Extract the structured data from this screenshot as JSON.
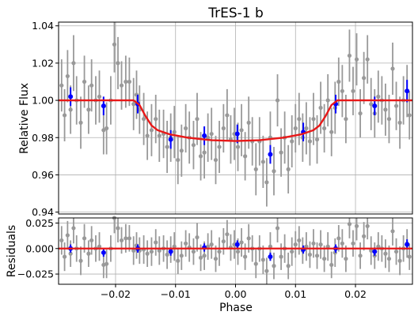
{
  "chart_data": [
    {
      "type": "scatter",
      "title": "TrES-1 b",
      "xlabel": "",
      "ylabel": "Relative Flux",
      "xlim": [
        -0.0295,
        0.0295
      ],
      "ylim": [
        0.939,
        1.042
      ],
      "yticks": [
        "0.94",
        "0.96",
        "0.98",
        "1.00",
        "1.02",
        "1.04"
      ],
      "ytick_values": [
        0.94,
        0.96,
        0.98,
        1.0,
        1.02,
        1.04
      ],
      "grid": true,
      "colors": {
        "raw": "#999999",
        "binned": "#0000ff",
        "model": "#e81818"
      },
      "raw": [
        [
          -0.029,
          1.008,
          0.014
        ],
        [
          -0.0285,
          0.992,
          0.014
        ],
        [
          -0.028,
          1.013,
          0.014
        ],
        [
          -0.0275,
          0.995,
          0.013
        ],
        [
          -0.027,
          1.02,
          0.015
        ],
        [
          -0.0265,
          1.0,
          0.013
        ],
        [
          -0.0258,
          0.988,
          0.014
        ],
        [
          -0.0252,
          1.01,
          0.014
        ],
        [
          -0.0245,
          0.995,
          0.013
        ],
        [
          -0.024,
          1.008,
          0.014
        ],
        [
          -0.0233,
          1.0,
          0.013
        ],
        [
          -0.0227,
          1.002,
          0.014
        ],
        [
          -0.022,
          0.984,
          0.013
        ],
        [
          -0.0215,
          0.985,
          0.014
        ],
        [
          -0.0208,
          1.0,
          0.013
        ],
        [
          -0.0202,
          1.03,
          0.015
        ],
        [
          -0.0196,
          1.02,
          0.014
        ],
        [
          -0.019,
          1.008,
          0.013
        ],
        [
          -0.0183,
          1.01,
          0.014
        ],
        [
          -0.0177,
          1.01,
          0.013
        ],
        [
          -0.017,
          0.998,
          0.014
        ],
        [
          -0.0165,
          1.003,
          0.013
        ],
        [
          -0.016,
          0.995,
          0.013
        ],
        [
          -0.0153,
          0.99,
          0.014
        ],
        [
          -0.0147,
          0.981,
          0.013
        ],
        [
          -0.014,
          0.984,
          0.014
        ],
        [
          -0.0133,
          0.99,
          0.013
        ],
        [
          -0.0127,
          0.981,
          0.014
        ],
        [
          -0.012,
          0.982,
          0.013
        ],
        [
          -0.0114,
          0.975,
          0.014
        ],
        [
          -0.0108,
          0.98,
          0.013
        ],
        [
          -0.0102,
          0.983,
          0.014
        ],
        [
          -0.0096,
          0.968,
          0.013
        ],
        [
          -0.009,
          0.973,
          0.014
        ],
        [
          -0.0083,
          0.985,
          0.013
        ],
        [
          -0.0077,
          0.98,
          0.014
        ],
        [
          -0.007,
          0.976,
          0.013
        ],
        [
          -0.0064,
          0.99,
          0.014
        ],
        [
          -0.0058,
          0.97,
          0.013
        ],
        [
          -0.0052,
          0.972,
          0.014
        ],
        [
          -0.0046,
          0.98,
          0.013
        ],
        [
          -0.004,
          0.982,
          0.014
        ],
        [
          -0.0033,
          0.968,
          0.013
        ],
        [
          -0.0027,
          0.975,
          0.014
        ],
        [
          -0.002,
          0.985,
          0.013
        ],
        [
          -0.0014,
          0.992,
          0.014
        ],
        [
          -0.0008,
          0.979,
          0.013
        ],
        [
          -0.0002,
          0.982,
          0.014
        ],
        [
          0.0004,
          0.975,
          0.013
        ],
        [
          0.001,
          0.984,
          0.014
        ],
        [
          0.0016,
          0.97,
          0.013
        ],
        [
          0.0022,
          0.988,
          0.014
        ],
        [
          0.0028,
          0.978,
          0.013
        ],
        [
          0.0034,
          0.963,
          0.014
        ],
        [
          0.004,
          0.978,
          0.013
        ],
        [
          0.0046,
          0.967,
          0.014
        ],
        [
          0.0052,
          0.956,
          0.013
        ],
        [
          0.0058,
          0.98,
          0.014
        ],
        [
          0.0064,
          0.962,
          0.013
        ],
        [
          0.007,
          1.0,
          0.014
        ],
        [
          0.0076,
          0.972,
          0.013
        ],
        [
          0.0082,
          0.98,
          0.014
        ],
        [
          0.0088,
          0.963,
          0.013
        ],
        [
          0.0094,
          0.978,
          0.014
        ],
        [
          0.01,
          0.985,
          0.013
        ],
        [
          0.0106,
          0.99,
          0.014
        ],
        [
          0.0112,
          0.98,
          0.013
        ],
        [
          0.0118,
          0.985,
          0.014
        ],
        [
          0.0124,
          0.978,
          0.013
        ],
        [
          0.013,
          0.99,
          0.014
        ],
        [
          0.0136,
          0.979,
          0.013
        ],
        [
          0.0142,
          0.996,
          0.014
        ],
        [
          0.0148,
          0.985,
          0.013
        ],
        [
          0.0154,
          1.0,
          0.014
        ],
        [
          0.016,
          0.983,
          0.013
        ],
        [
          0.0166,
          0.996,
          0.014
        ],
        [
          0.0172,
          1.01,
          0.013
        ],
        [
          0.0178,
          1.005,
          0.014
        ],
        [
          0.0184,
          0.99,
          0.013
        ],
        [
          0.019,
          1.024,
          0.014
        ],
        [
          0.0196,
          1.005,
          0.013
        ],
        [
          0.0202,
          1.022,
          0.014
        ],
        [
          0.0208,
          0.993,
          0.013
        ],
        [
          0.0214,
          1.012,
          0.014
        ],
        [
          0.022,
          1.022,
          0.013
        ],
        [
          0.0226,
          0.998,
          0.014
        ],
        [
          0.0232,
          0.993,
          0.013
        ],
        [
          0.0238,
          1.002,
          0.014
        ],
        [
          0.0244,
          1.0,
          0.013
        ],
        [
          0.025,
          0.995,
          0.014
        ],
        [
          0.0256,
          0.99,
          0.013
        ],
        [
          0.0262,
          1.017,
          0.014
        ],
        [
          0.0268,
          0.997,
          0.013
        ],
        [
          0.0274,
          0.988,
          0.014
        ],
        [
          0.028,
          1.0,
          0.013
        ],
        [
          0.0286,
          1.005,
          0.014
        ],
        [
          0.029,
          0.992,
          0.013
        ]
      ],
      "binned": [
        [
          -0.0275,
          1.002,
          0.005
        ],
        [
          -0.022,
          0.997,
          0.005
        ],
        [
          -0.0163,
          0.998,
          0.005
        ],
        [
          -0.0108,
          0.979,
          0.005
        ],
        [
          -0.0052,
          0.981,
          0.005
        ],
        [
          0.0003,
          0.982,
          0.005
        ],
        [
          0.0058,
          0.971,
          0.005
        ],
        [
          0.0113,
          0.983,
          0.005
        ],
        [
          0.0167,
          0.998,
          0.005
        ],
        [
          0.0232,
          0.997,
          0.005
        ],
        [
          0.0286,
          1.005,
          0.006
        ]
      ],
      "model": [
        [
          -0.0295,
          1.0
        ],
        [
          -0.017,
          1.0
        ],
        [
          -0.016,
          0.9975
        ],
        [
          -0.015,
          0.9915
        ],
        [
          -0.014,
          0.9865
        ],
        [
          -0.013,
          0.984
        ],
        [
          -0.011,
          0.9818
        ],
        [
          -0.008,
          0.98
        ],
        [
          -0.004,
          0.9786
        ],
        [
          0.0,
          0.9782
        ],
        [
          0.004,
          0.9786
        ],
        [
          0.008,
          0.98
        ],
        [
          0.011,
          0.9818
        ],
        [
          0.013,
          0.984
        ],
        [
          0.014,
          0.9865
        ],
        [
          0.015,
          0.9915
        ],
        [
          0.016,
          0.9975
        ],
        [
          0.017,
          1.0
        ],
        [
          0.0295,
          1.0
        ]
      ]
    },
    {
      "type": "scatter",
      "title": "",
      "xlabel": "Phase",
      "ylabel": "Residuals",
      "xlim": [
        -0.0295,
        0.0295
      ],
      "ylim": [
        -0.035,
        0.03
      ],
      "xticks": [
        "−0.02",
        "−0.01",
        "0.00",
        "0.01",
        "0.02"
      ],
      "xtick_values": [
        -0.02,
        -0.01,
        0.0,
        0.01,
        0.02
      ],
      "yticks": [
        "−0.025",
        "0.000",
        "0.025"
      ],
      "ytick_values": [
        -0.025,
        0.0,
        0.025
      ],
      "grid": true,
      "zero_line": 0.0,
      "raw": [
        [
          -0.029,
          0.008,
          0.014
        ],
        [
          -0.0285,
          -0.008,
          0.014
        ],
        [
          -0.028,
          0.013,
          0.014
        ],
        [
          -0.0275,
          -0.005,
          0.013
        ],
        [
          -0.027,
          0.02,
          0.015
        ],
        [
          -0.0265,
          0.0,
          0.013
        ],
        [
          -0.0258,
          -0.012,
          0.014
        ],
        [
          -0.0252,
          0.01,
          0.014
        ],
        [
          -0.0245,
          -0.005,
          0.013
        ],
        [
          -0.024,
          0.008,
          0.014
        ],
        [
          -0.0233,
          0.0,
          0.013
        ],
        [
          -0.0227,
          0.002,
          0.014
        ],
        [
          -0.022,
          -0.016,
          0.013
        ],
        [
          -0.0215,
          -0.015,
          0.014
        ],
        [
          -0.0208,
          0.0,
          0.013
        ],
        [
          -0.0202,
          0.03,
          0.015
        ],
        [
          -0.0196,
          0.02,
          0.014
        ],
        [
          -0.019,
          0.008,
          0.013
        ],
        [
          -0.0183,
          0.01,
          0.014
        ],
        [
          -0.0177,
          0.01,
          0.013
        ],
        [
          -0.017,
          -0.002,
          0.014
        ],
        [
          -0.0165,
          0.003,
          0.013
        ],
        [
          -0.016,
          -0.002,
          0.013
        ],
        [
          -0.0153,
          -0.001,
          0.014
        ],
        [
          -0.0147,
          -0.005,
          0.013
        ],
        [
          -0.014,
          -0.003,
          0.014
        ],
        [
          -0.0133,
          0.006,
          0.013
        ],
        [
          -0.0127,
          -0.002,
          0.014
        ],
        [
          -0.012,
          0.0,
          0.013
        ],
        [
          -0.0114,
          -0.006,
          0.014
        ],
        [
          -0.0108,
          -0.001,
          0.013
        ],
        [
          -0.0102,
          0.002,
          0.014
        ],
        [
          -0.0096,
          -0.012,
          0.013
        ],
        [
          -0.009,
          -0.007,
          0.014
        ],
        [
          -0.0083,
          0.005,
          0.013
        ],
        [
          -0.0077,
          0.001,
          0.014
        ],
        [
          -0.007,
          -0.003,
          0.013
        ],
        [
          -0.0064,
          0.011,
          0.014
        ],
        [
          -0.0058,
          -0.009,
          0.013
        ],
        [
          -0.0052,
          -0.007,
          0.014
        ],
        [
          -0.0046,
          0.002,
          0.013
        ],
        [
          -0.004,
          0.004,
          0.014
        ],
        [
          -0.0033,
          -0.01,
          0.013
        ],
        [
          -0.0027,
          -0.003,
          0.014
        ],
        [
          -0.002,
          0.007,
          0.013
        ],
        [
          -0.0014,
          0.014,
          0.014
        ],
        [
          -0.0008,
          0.001,
          0.013
        ],
        [
          -0.0002,
          0.004,
          0.014
        ],
        [
          0.0004,
          -0.003,
          0.013
        ],
        [
          0.001,
          0.006,
          0.014
        ],
        [
          0.0016,
          -0.008,
          0.013
        ],
        [
          0.0022,
          0.01,
          0.014
        ],
        [
          0.0028,
          0.0,
          0.013
        ],
        [
          0.0034,
          -0.015,
          0.014
        ],
        [
          0.004,
          0.0,
          0.013
        ],
        [
          0.0046,
          -0.011,
          0.014
        ],
        [
          0.0052,
          -0.022,
          0.013
        ],
        [
          0.0058,
          0.002,
          0.014
        ],
        [
          0.0064,
          -0.017,
          0.013
        ],
        [
          0.007,
          0.02,
          0.014
        ],
        [
          0.0076,
          -0.008,
          0.013
        ],
        [
          0.0082,
          0.0,
          0.014
        ],
        [
          0.0088,
          -0.017,
          0.013
        ],
        [
          0.0094,
          -0.003,
          0.014
        ],
        [
          0.01,
          0.004,
          0.013
        ],
        [
          0.0106,
          0.008,
          0.014
        ],
        [
          0.0112,
          -0.002,
          0.013
        ],
        [
          0.0118,
          0.002,
          0.014
        ],
        [
          0.0124,
          -0.006,
          0.013
        ],
        [
          0.013,
          0.005,
          0.014
        ],
        [
          0.0136,
          -0.007,
          0.013
        ],
        [
          0.0142,
          0.004,
          0.014
        ],
        [
          0.0148,
          -0.01,
          0.013
        ],
        [
          0.0154,
          0.002,
          0.014
        ],
        [
          0.016,
          -0.016,
          0.013
        ],
        [
          0.0166,
          -0.004,
          0.014
        ],
        [
          0.0172,
          0.01,
          0.013
        ],
        [
          0.0178,
          0.005,
          0.014
        ],
        [
          0.0184,
          -0.01,
          0.013
        ],
        [
          0.019,
          0.024,
          0.014
        ],
        [
          0.0196,
          0.005,
          0.013
        ],
        [
          0.0202,
          0.022,
          0.014
        ],
        [
          0.0208,
          -0.007,
          0.013
        ],
        [
          0.0214,
          0.012,
          0.014
        ],
        [
          0.022,
          0.022,
          0.013
        ],
        [
          0.0226,
          -0.002,
          0.014
        ],
        [
          0.0232,
          -0.007,
          0.013
        ],
        [
          0.0238,
          0.002,
          0.014
        ],
        [
          0.0244,
          0.0,
          0.013
        ],
        [
          0.025,
          -0.005,
          0.014
        ],
        [
          0.0256,
          -0.01,
          0.013
        ],
        [
          0.0262,
          0.017,
          0.014
        ],
        [
          0.0268,
          -0.003,
          0.013
        ],
        [
          0.0274,
          -0.012,
          0.014
        ],
        [
          0.028,
          0.0,
          0.013
        ],
        [
          0.0286,
          0.005,
          0.014
        ],
        [
          0.029,
          -0.008,
          0.013
        ]
      ],
      "binned": [
        [
          -0.0275,
          0.0,
          0.004
        ],
        [
          -0.022,
          -0.004,
          0.004
        ],
        [
          -0.0163,
          0.0,
          0.004
        ],
        [
          -0.0108,
          -0.003,
          0.004
        ],
        [
          -0.0052,
          0.001,
          0.004
        ],
        [
          0.0003,
          0.004,
          0.004
        ],
        [
          0.0058,
          -0.008,
          0.004
        ],
        [
          0.0113,
          -0.001,
          0.004
        ],
        [
          0.0167,
          0.0,
          0.004
        ],
        [
          0.0232,
          -0.003,
          0.004
        ],
        [
          0.0286,
          0.004,
          0.005
        ]
      ]
    }
  ]
}
